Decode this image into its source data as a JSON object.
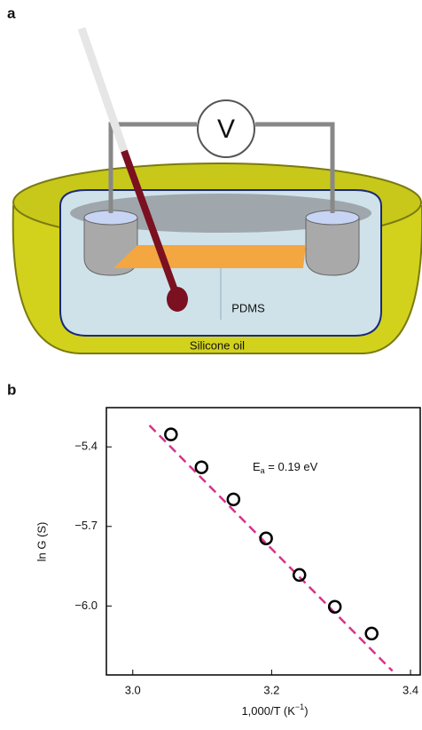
{
  "figure_a": {
    "label": "a",
    "voltmeter": "V",
    "inner_label": "PDMS",
    "outer_label": "Silicone oil"
  },
  "figure_b_label": "b",
  "chart_data": {
    "type": "scatter",
    "ylabel": "ln G (S)",
    "xlabel": {
      "main": "1,000/T (K",
      "sup": "−1",
      "end": ")"
    },
    "annotation": {
      "main": "E",
      "sub": "a",
      "rest": " = 0.19 eV"
    },
    "xlim": [
      2.962,
      3.414
    ],
    "ylim": [
      -6.26,
      -5.252
    ],
    "xticks": [
      {
        "value": 3,
        "label": "3.0"
      },
      3.2,
      3.4
    ],
    "yticks": [
      {
        "value": -5.4,
        "label": "−5.4"
      },
      {
        "value": -5.7,
        "label": "−5.7"
      },
      {
        "value": -6,
        "label": "−6.0"
      }
    ],
    "series": [
      {
        "type": "scatter",
        "color": "#000000",
        "x": [
          3.055,
          3.099,
          3.145,
          3.192,
          3.24,
          3.291,
          3.344
        ],
        "values": [
          -5.353,
          -5.477,
          -5.598,
          -5.745,
          -5.883,
          -6.003,
          -6.104
        ]
      },
      {
        "type": "line",
        "color": "#d6338a",
        "dashed": true,
        "x": [
          3.024,
          3.374
        ],
        "values": [
          -5.319,
          -6.245
        ]
      }
    ]
  }
}
